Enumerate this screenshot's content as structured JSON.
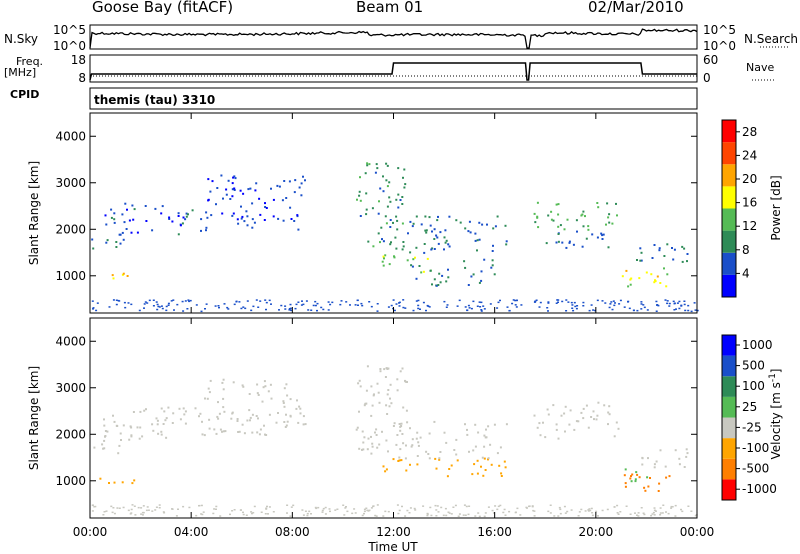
{
  "header": {
    "station": "Goose Bay (fitACF)",
    "beam": "Beam 01",
    "date": "02/Mar/2010"
  },
  "panels": {
    "nsky_label": "N.Sky",
    "nsearch_label": "N.Search",
    "freq_label": "Freq.",
    "freq_unit": "[MHz]",
    "nave_label": "Nave",
    "cpid_label": "CPID",
    "cpid_text": "themis (tau) 3310",
    "noise_ticks_left": [
      "10^5",
      "10^0"
    ],
    "noise_ticks_right": [
      "10^5",
      "10^0"
    ],
    "freq_ticks": [
      "18",
      "8"
    ],
    "nave_ticks": [
      "60",
      "0"
    ]
  },
  "chart_data": [
    {
      "type": "heatmap",
      "title": "",
      "xlabel": "Time UT",
      "ylabel": "Slant Range [km]",
      "colorbar_label": "Power [dB]",
      "x_ticks": [
        "00:00",
        "04:00",
        "08:00",
        "12:00",
        "16:00",
        "20:00",
        "00:00"
      ],
      "y_ticks": [
        1000,
        2000,
        3000,
        4000
      ],
      "ylim": [
        200,
        4500
      ],
      "colorbar_ticks": [
        4,
        8,
        12,
        16,
        20,
        24,
        28
      ],
      "colorbar_range": [
        0,
        30
      ],
      "colors": [
        "#0000ff",
        "#1a4fc9",
        "#2e8b57",
        "#55bb55",
        "#ffff00",
        "#ffa500",
        "#ff4500",
        "#ff0000"
      ],
      "blobs": [
        {
          "t": [
            0.0,
            1.8
          ],
          "r": [
            900,
            1100
          ],
          "v": 20
        },
        {
          "t": [
            0.0,
            1.5
          ],
          "r": [
            1600,
            1900
          ],
          "v": 8
        },
        {
          "t": [
            0.5,
            4.5
          ],
          "r": [
            1900,
            2600
          ],
          "v": 6
        },
        {
          "t": [
            4.5,
            8.5
          ],
          "r": [
            2000,
            3200
          ],
          "v": 5
        },
        {
          "t": [
            10.5,
            12.5
          ],
          "r": [
            1600,
            3500
          ],
          "v": 10
        },
        {
          "t": [
            11.5,
            13.5
          ],
          "r": [
            1000,
            1500
          ],
          "v": 16
        },
        {
          "t": [
            12.0,
            16.5
          ],
          "r": [
            1500,
            2300
          ],
          "v": 8
        },
        {
          "t": [
            12.5,
            16.0
          ],
          "r": [
            800,
            1400
          ],
          "v": 9
        },
        {
          "t": [
            17.5,
            21.0
          ],
          "r": [
            2000,
            2600
          ],
          "v": 12
        },
        {
          "t": [
            17.5,
            20.5
          ],
          "r": [
            1500,
            2000
          ],
          "v": 7
        },
        {
          "t": [
            21.0,
            23.0
          ],
          "r": [
            700,
            1200
          ],
          "v": 18
        },
        {
          "t": [
            21.5,
            24.0
          ],
          "r": [
            1300,
            1700
          ],
          "v": 8
        }
      ]
    },
    {
      "type": "heatmap",
      "title": "",
      "xlabel": "Time UT",
      "ylabel": "Slant Range [km]",
      "colorbar_label": "Velocity [m s^-1]",
      "x_ticks": [
        "00:00",
        "04:00",
        "08:00",
        "12:00",
        "16:00",
        "20:00",
        "00:00"
      ],
      "y_ticks": [
        1000,
        2000,
        3000,
        4000
      ],
      "ylim": [
        200,
        4500
      ],
      "colorbar_ticks": [
        "1000",
        "500",
        "100",
        "25",
        "-25",
        "-100",
        "-500",
        "-1000"
      ],
      "colors": [
        "#0000ff",
        "#1a4fc9",
        "#2e8b57",
        "#55bb55",
        "#c8c8c0",
        "#ffa500",
        "#ff7f00",
        "#ff0000"
      ],
      "blobs": [
        {
          "t": [
            0.0,
            1.8
          ],
          "r": [
            900,
            1100
          ],
          "v": -100
        },
        {
          "t": [
            0.0,
            1.5
          ],
          "r": [
            1600,
            1900
          ],
          "v": 0
        },
        {
          "t": [
            0.5,
            4.5
          ],
          "r": [
            1900,
            2600
          ],
          "v": 0
        },
        {
          "t": [
            4.5,
            8.5
          ],
          "r": [
            2000,
            3200
          ],
          "v": 0
        },
        {
          "t": [
            10.5,
            12.5
          ],
          "r": [
            1600,
            3500
          ],
          "v": 0
        },
        {
          "t": [
            11.5,
            16.5
          ],
          "r": [
            1100,
            1500
          ],
          "v": -100
        },
        {
          "t": [
            12.0,
            16.5
          ],
          "r": [
            1500,
            2300
          ],
          "v": 0
        },
        {
          "t": [
            17.5,
            21.0
          ],
          "r": [
            1900,
            2700
          ],
          "v": 0
        },
        {
          "t": [
            21.0,
            23.0
          ],
          "r": [
            800,
            1200
          ],
          "v": -500
        },
        {
          "t": [
            21.0,
            22.0
          ],
          "r": [
            1000,
            1300
          ],
          "v": 100
        },
        {
          "t": [
            21.5,
            24.0
          ],
          "r": [
            1300,
            1700
          ],
          "v": 0
        }
      ]
    }
  ]
}
